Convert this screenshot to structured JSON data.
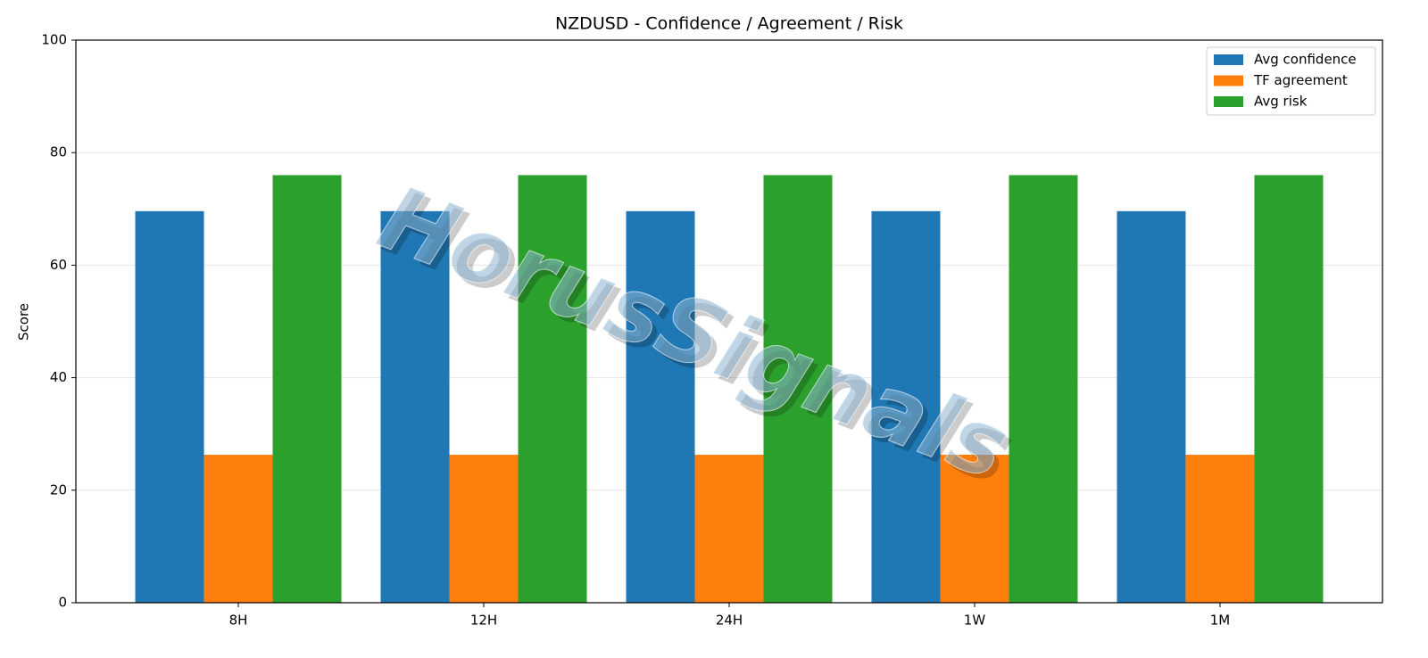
{
  "chart_data": {
    "type": "bar",
    "title": "NZDUSD - Confidence / Agreement / Risk",
    "y_label": "Score",
    "watermark": "HorusSignals",
    "categories": [
      "8H",
      "12H",
      "24H",
      "1W",
      "1M"
    ],
    "series": [
      {
        "name": "Avg confidence",
        "color": "#1f77b4",
        "values": [
          69.6,
          69.6,
          69.6,
          69.6,
          69.6
        ]
      },
      {
        "name": "TF agreement",
        "color": "#ff7f0e",
        "values": [
          26.3,
          26.3,
          26.3,
          26.3,
          26.3
        ]
      },
      {
        "name": "Avg risk",
        "color": "#2ca02c",
        "values": [
          76,
          76,
          76,
          76,
          76
        ]
      }
    ],
    "ylim": [
      0,
      100
    ],
    "yticks": [
      0,
      20,
      40,
      60,
      80,
      100
    ],
    "grid": true,
    "legend": "upper right"
  }
}
